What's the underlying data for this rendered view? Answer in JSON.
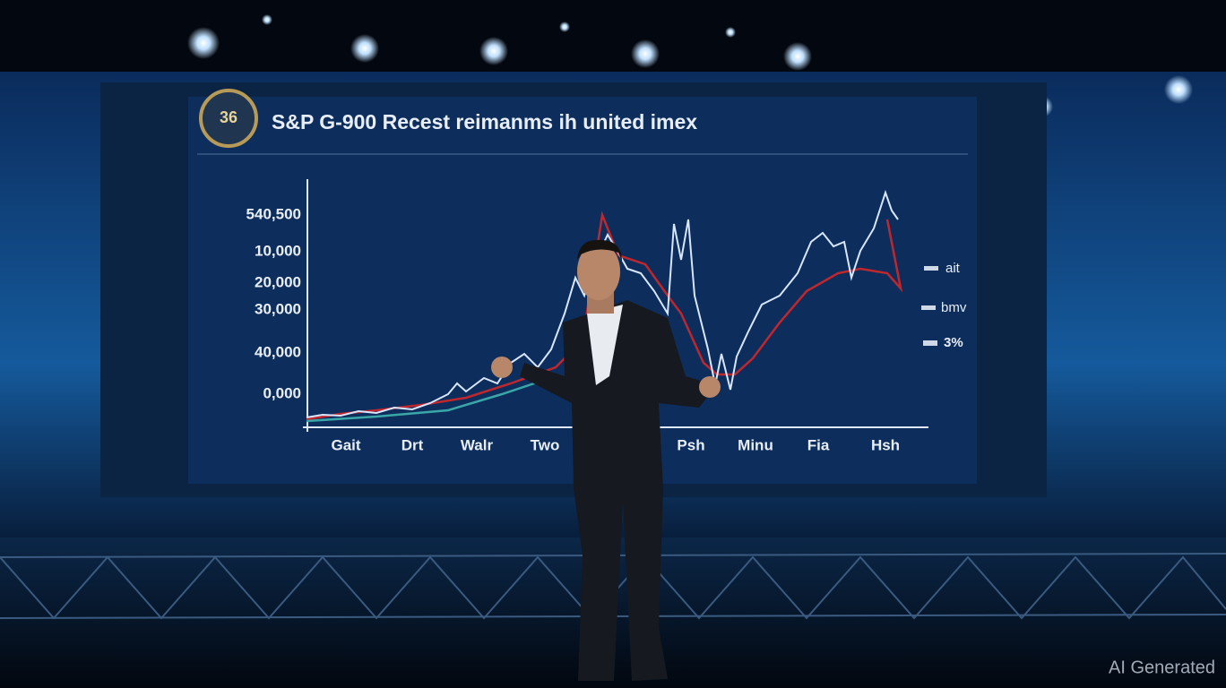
{
  "screen": {
    "badge": "36",
    "title": "S&P G-900 Recest reimanms ih united imex",
    "y_labels": [
      "540,500",
      "10,000",
      "20,000",
      "30,000",
      "40,000",
      "0,000"
    ],
    "x_labels": [
      "Gait",
      "Drt",
      "Walr",
      "Two",
      "Psh",
      "Minu",
      "Fia",
      "Hsh"
    ],
    "legend": [
      "ait",
      "bmv",
      "3%"
    ]
  },
  "watermark": "AI Generated"
}
